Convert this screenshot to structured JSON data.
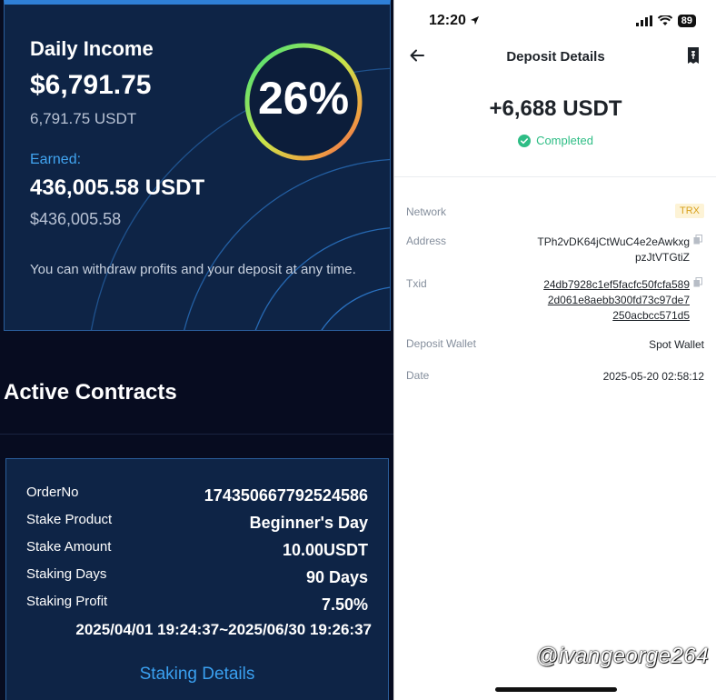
{
  "income_card": {
    "title": "Daily Income",
    "usd": "$6,791.75",
    "usdt": "6,791.75 USDT",
    "earned_label": "Earned:",
    "earned_usdt": "436,005.58 USDT",
    "earned_usd": "$436,005.58",
    "note": "You can withdraw profits and your deposit at any time.",
    "percent": "26%",
    "percent_value": 26
  },
  "active_contracts": {
    "title": "Active Contracts",
    "rows": [
      {
        "label": "OrderNo",
        "value": "174350667792524586"
      },
      {
        "label": "Stake Product",
        "value": "Beginner's Day"
      },
      {
        "label": "Stake Amount",
        "value": "10.00USDT"
      },
      {
        "label": "Staking Days",
        "value": "90 Days"
      },
      {
        "label": "Staking Profit",
        "value": "7.50%"
      }
    ],
    "period": "2025/04/01 19:24:37~2025/06/30 19:26:37",
    "details_link": "Staking Details"
  },
  "status_bar": {
    "time": "12:20",
    "battery": "89"
  },
  "deposit": {
    "title": "Deposit Details",
    "amount": "+6,688 USDT",
    "status": "Completed",
    "network_label": "Network",
    "network_value": "TRX",
    "address_label": "Address",
    "address_line1": "TPh2vDK64jCtWuC4e2eAwkxg",
    "address_line2": "pzJtVTGtiZ",
    "txid_label": "Txid",
    "txid_line1": "24db7928c1ef5facfc50fcfa589",
    "txid_line2": "2d061e8aebb300fd73c97de7",
    "txid_line3": "250acbcc571d5",
    "wallet_label": "Deposit Wallet",
    "wallet_value": "Spot Wallet",
    "date_label": "Date",
    "date_value": "2025-05-20 02:58:12"
  },
  "watermark": "@ivangeorge264",
  "colors": {
    "card_bg": "#0e2446",
    "accent_blue": "#3aa0f0",
    "success_green": "#2ebd85",
    "trx_badge": "#d8a11d"
  }
}
